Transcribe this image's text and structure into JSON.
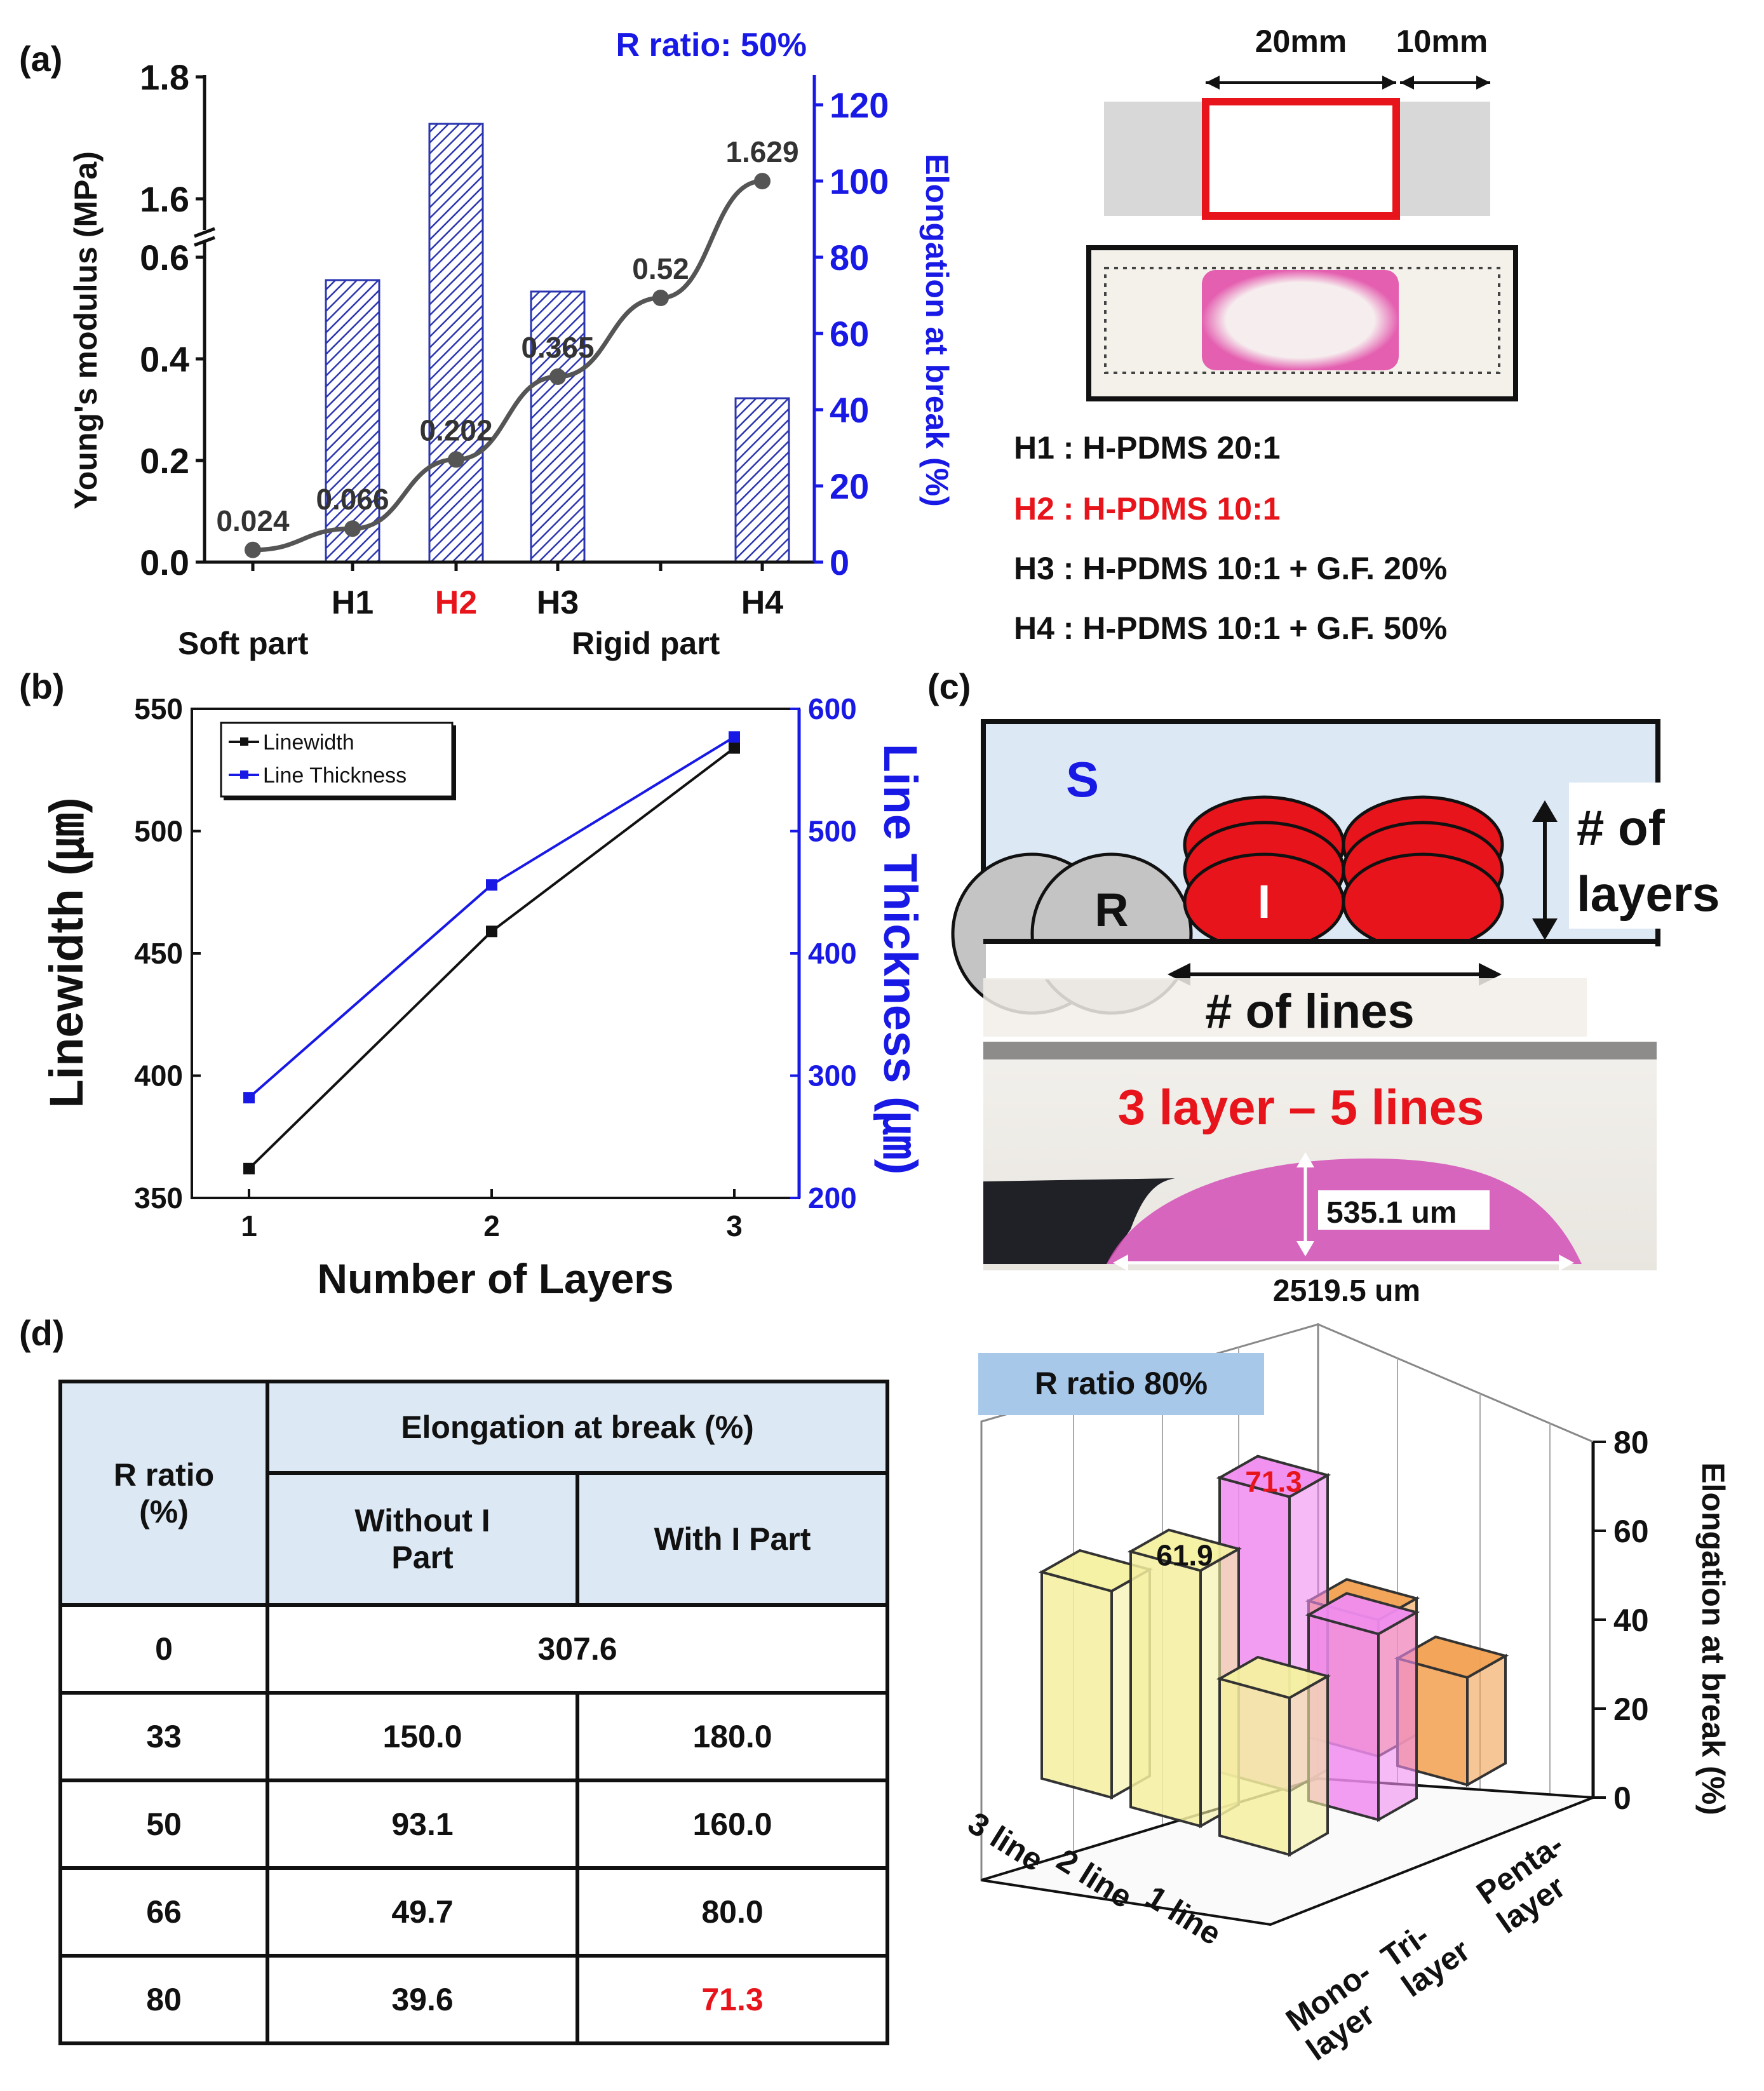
{
  "panels": {
    "a": "(a)",
    "b": "(b)",
    "c": "(c)",
    "d": "(d)"
  },
  "chart_a": {
    "title": "R ratio: 50%",
    "ylabel": "Young's modulus (MPa)",
    "y2label": "Elongation at break (%)",
    "yticks_lower": [
      "0.0",
      "0.2",
      "0.4",
      "0.6"
    ],
    "yticks_upper": [
      "1.6",
      "1.8"
    ],
    "y2ticks": [
      "0",
      "20",
      "40",
      "60",
      "80",
      "100",
      "120"
    ],
    "x_labels": [
      {
        "label": "H1",
        "color": "#111111"
      },
      {
        "label": "H2",
        "color": "#e8141b"
      },
      {
        "label": "H3",
        "color": "#111111"
      },
      {
        "label": "H4",
        "color": "#111111"
      }
    ],
    "group_labels": [
      "Soft part",
      "Rigid part"
    ]
  },
  "chart_data": [
    {
      "type": "line",
      "x": [
        0,
        1,
        2,
        3,
        4,
        5
      ],
      "values": [
        0.024,
        0.066,
        0.202,
        0.365,
        0.52,
        1.629
      ],
      "point_labels": [
        "0.024",
        "0.066",
        "0.202",
        "0.365",
        "0.52",
        "1.629"
      ],
      "ylim": [
        0,
        1.8
      ],
      "y_axis_break": [
        0.65,
        1.55
      ]
    },
    {
      "type": "bar",
      "categories": [
        "H1",
        "H2",
        "H3",
        "H4"
      ],
      "values": [
        74,
        115,
        71,
        43
      ],
      "ylim": [
        0,
        120
      ]
    },
    {
      "type": "line",
      "xlabel": "Number of Layers",
      "ylabel": "Linewidth (㎛)",
      "y2label": "Line Thickness (㎛)",
      "x": [
        1,
        2,
        3
      ],
      "xticks": [
        "1",
        "2",
        "3"
      ],
      "yticks": [
        "350",
        "400",
        "450",
        "500",
        "550"
      ],
      "y2ticks": [
        "200",
        "300",
        "400",
        "500",
        "600"
      ],
      "ylim": [
        350,
        550
      ],
      "y2lim": [
        200,
        600
      ],
      "series": [
        {
          "name": "Linewidth",
          "values": [
            362,
            459,
            534
          ],
          "axis": "left",
          "color": "#111111"
        },
        {
          "name": "Line Thickness",
          "values": [
            282,
            456,
            577
          ],
          "axis": "right",
          "color": "#1919e6"
        }
      ],
      "legend": "top-left"
    },
    {
      "type": "table",
      "header": {
        "r_ratio": "R ratio\n(%)",
        "elongation": "Elongation at break (%)",
        "without": "Without I\nPart",
        "with": "With I Part"
      },
      "rows": [
        {
          "r": "0",
          "combined": "307.6"
        },
        {
          "r": "33",
          "without": "150.0",
          "with": "180.0"
        },
        {
          "r": "50",
          "without": "93.1",
          "with": "160.0"
        },
        {
          "r": "66",
          "without": "49.7",
          "with": "80.0"
        },
        {
          "r": "80",
          "without": "39.6",
          "with": "71.3",
          "with_color": "#e8141b"
        }
      ]
    },
    {
      "type": "bar",
      "title": "R ratio 80%",
      "zlabel": "Elongation at break (%)",
      "zticks": [
        "0",
        "20",
        "40",
        "60",
        "80"
      ],
      "zlim": [
        0,
        80
      ],
      "lines_axis": [
        "3 line",
        "2 line",
        "1 line"
      ],
      "layers_axis": [
        "Mono-\nlayer",
        "Tri-\nlayer",
        "Penta-\nlayer"
      ],
      "values": [
        {
          "line": "3 line",
          "layer": "Mono-layer",
          "value": 50
        },
        {
          "line": "2 line",
          "layer": "Mono-layer",
          "value": 61.9,
          "label": "61.9"
        },
        {
          "line": "1 line",
          "layer": "Mono-layer",
          "value": 38
        },
        {
          "line": "2 line",
          "layer": "Tri-layer",
          "value": 71.3,
          "label": "71.3"
        },
        {
          "line": "1 line",
          "layer": "Tri-layer",
          "value": 45
        },
        {
          "line": "2 line",
          "layer": "Penta-layer",
          "value": 33
        },
        {
          "line": "1 line",
          "layer": "Penta-layer",
          "value": 26
        }
      ]
    }
  ],
  "spec": {
    "dim_left": "20mm",
    "dim_right": "10mm",
    "materials": [
      {
        "text": "H1 : H-PDMS 20:1",
        "color": "#111111"
      },
      {
        "text": "H2 : H-PDMS 10:1",
        "color": "#e8141b"
      },
      {
        "text": "H3 : H-PDMS 10:1 + G.F. 20%",
        "color": "#111111"
      },
      {
        "text": "H4 : H-PDMS 10:1 + G.F. 50%",
        "color": "#111111"
      }
    ]
  },
  "schematic_c": {
    "s_label": "S",
    "r_label": "R",
    "i_label": "I",
    "layers_label": "# of\nlayers",
    "lines_label": "# of lines",
    "photo_title": "3 layer – 5 lines",
    "height_label": "535.1 um",
    "width_label": "2519.5 um"
  },
  "colors": {
    "blue": "#1919e6",
    "red": "#e8141b",
    "bar_blue": "#2b35b0",
    "light_blue": "#dce8f4"
  }
}
